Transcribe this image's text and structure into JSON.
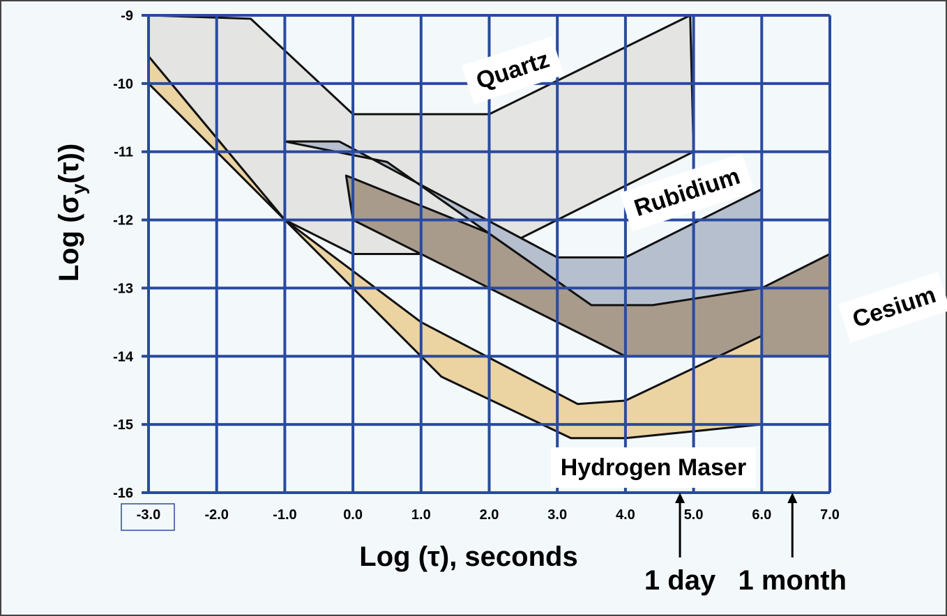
{
  "chart_data": {
    "type": "region",
    "x_label": "Log (τ), seconds",
    "y_label": [
      "Log (σ",
      "y",
      "(τ))"
    ],
    "xlim": [
      -3,
      7
    ],
    "ylim": [
      -16,
      -9
    ],
    "xticks": [
      {
        "value": -3,
        "label": "-3.0"
      },
      {
        "value": -2,
        "label": "-2.0"
      },
      {
        "value": -1,
        "label": "-1.0"
      },
      {
        "value": 0,
        "label": "0.0"
      },
      {
        "value": 1,
        "label": "1.0"
      },
      {
        "value": 2,
        "label": "2.0"
      },
      {
        "value": 3,
        "label": "3.0"
      },
      {
        "value": 4,
        "label": "4.0"
      },
      {
        "value": 5,
        "label": "5.0"
      },
      {
        "value": 6,
        "label": "6.0"
      },
      {
        "value": 7,
        "label": "7.0"
      }
    ],
    "yticks": [
      -9,
      -10,
      -11,
      -12,
      -13,
      -14,
      -15,
      -16
    ],
    "grid": true,
    "series": [
      {
        "name": "Quartz",
        "color": "#e4e4e2",
        "x": [
          -3,
          -1.5,
          0,
          2,
          4.95,
          5,
          2,
          0,
          -1,
          -3
        ],
        "values": [
          -9,
          -9.05,
          -10.45,
          -10.45,
          -9,
          -11,
          -12.5,
          -12.5,
          -12,
          -9.6
        ]
      },
      {
        "name": "Cesium",
        "color": "#a99b8c",
        "x": [
          -0.1,
          4,
          6,
          7,
          7,
          4,
          0
        ],
        "values": [
          -11.35,
          -13,
          -13,
          -12.5,
          -14,
          -14,
          -12
        ]
      },
      {
        "name": "Rubidium",
        "color": "#b6bfcd",
        "x": [
          -1,
          -0.2,
          3,
          4,
          6,
          6,
          4.4,
          3.5,
          0.5
        ],
        "values": [
          -10.85,
          -10.85,
          -12.55,
          -12.55,
          -11.55,
          -13,
          -13.25,
          -13.25,
          -11.15
        ]
      },
      {
        "name": "Hydrogen Maser",
        "color": "#ecd3a2",
        "x": [
          -3,
          -1,
          1,
          3.3,
          4,
          6,
          6,
          4,
          3.2,
          1.3,
          -1,
          -3
        ],
        "values": [
          -9.6,
          -12,
          -13.5,
          -14.7,
          -14.65,
          -13.7,
          -15,
          -15.2,
          -15.2,
          -14.3,
          -12,
          -10
        ]
      }
    ],
    "annotations": [
      {
        "text": "1 day",
        "x": 4.8
      },
      {
        "text": "1 month",
        "x": 6.45
      }
    ]
  }
}
